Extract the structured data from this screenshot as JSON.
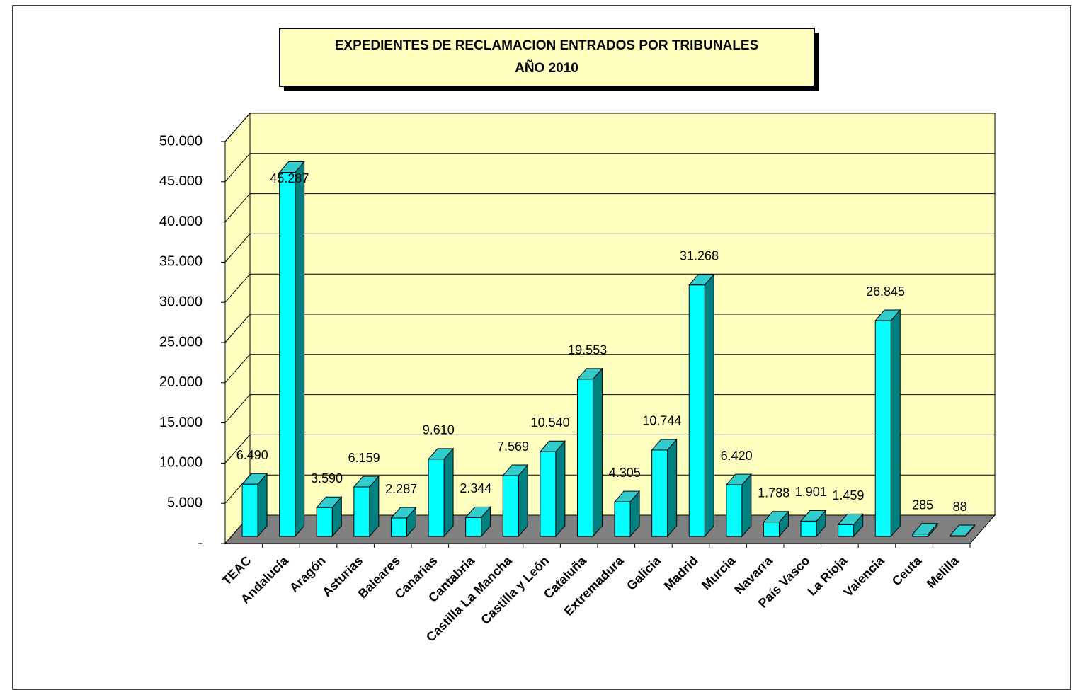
{
  "chart_data": {
    "type": "bar3d",
    "title": "EXPEDIENTES DE RECLAMACION  ENTRADOS POR TRIBUNALES",
    "subtitle": "AÑO 2010",
    "categories": [
      "TEAC",
      "Andalucía",
      "Aragón",
      "Asturias",
      "Baleares",
      "Canarias",
      "Cantabria",
      "Castilla La Mancha",
      "Castilla y León",
      "Cataluña",
      "Extremadura",
      "Galicia",
      "Madrid",
      "Murcia",
      "Navarra",
      "País Vasco",
      "La Rioja",
      "Valencia",
      "Ceuta",
      "Melilla"
    ],
    "values": [
      6490,
      45287,
      3590,
      6159,
      2287,
      9610,
      2344,
      7569,
      10540,
      19553,
      4305,
      10744,
      31268,
      6420,
      1788,
      1901,
      1459,
      26845,
      285,
      88
    ],
    "value_labels": [
      "6.490",
      "45.287",
      "3.590",
      "6.159",
      "2.287",
      "9.610",
      "2.344",
      "7.569",
      "10.540",
      "19.553",
      "4.305",
      "10.744",
      "31.268",
      "6.420",
      "1.788",
      "1.901",
      "1.459",
      "26.845",
      "285",
      "88"
    ],
    "color": "#00ffff",
    "ylim": [
      0,
      50000
    ],
    "yticks": [
      {
        "value": 0,
        "label": "-"
      },
      {
        "value": 5000,
        "label": "5.000"
      },
      {
        "value": 10000,
        "label": "10.000"
      },
      {
        "value": 15000,
        "label": "15.000"
      },
      {
        "value": 20000,
        "label": "20.000"
      },
      {
        "value": 25000,
        "label": "25.000"
      },
      {
        "value": 30000,
        "label": "30.000"
      },
      {
        "value": 35000,
        "label": "35.000"
      },
      {
        "value": 40000,
        "label": "40.000"
      },
      {
        "value": 45000,
        "label": "45.000"
      },
      {
        "value": 50000,
        "label": "50.000"
      }
    ],
    "grid": true
  }
}
